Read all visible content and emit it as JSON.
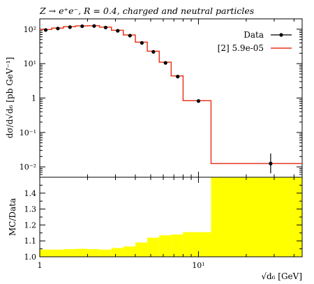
{
  "title": "Z → e⁺e⁻, R = 0.4, charged and neutral particles",
  "colors": {
    "data_marker": "#000000",
    "mc_line": "#e8371f",
    "ratio_band": "#ffff00",
    "axis": "#000000"
  },
  "legend": {
    "entries": [
      {
        "label": "Data",
        "style": "marker-errorbar"
      },
      {
        "label": "[2] 5.9e-05",
        "style": "line"
      }
    ],
    "placement": "top-right"
  },
  "chart_data": [
    {
      "type": "line",
      "panel": "main",
      "ylabel": "dσ/d√d₆ [pb GeV⁻¹]",
      "xscale": "log",
      "yscale": "log",
      "xlim": [
        1,
        45
      ],
      "ylim": [
        0.005,
        200
      ],
      "yticks": [
        {
          "value": 0.01,
          "label": "10⁻²"
        },
        {
          "value": 0.1,
          "label": "10⁻¹"
        },
        {
          "value": 1,
          "label": "1"
        },
        {
          "value": 10,
          "label": "10¹"
        },
        {
          "value": 100,
          "label": "10²"
        }
      ],
      "series": [
        {
          "name": "Data",
          "points": [
            {
              "x": 1.09,
              "y": 95,
              "err": [
                0,
                0
              ]
            },
            {
              "x": 1.3,
              "y": 105,
              "err": [
                0,
                0
              ]
            },
            {
              "x": 1.55,
              "y": 115,
              "err": [
                0,
                0
              ]
            },
            {
              "x": 1.85,
              "y": 122,
              "err": [
                0,
                0
              ]
            },
            {
              "x": 2.2,
              "y": 124,
              "err": [
                0,
                0
              ]
            },
            {
              "x": 2.6,
              "y": 112,
              "err": [
                0,
                0
              ]
            },
            {
              "x": 3.1,
              "y": 90,
              "err": [
                0,
                0
              ]
            },
            {
              "x": 3.7,
              "y": 65,
              "err": [
                0,
                0
              ]
            },
            {
              "x": 4.4,
              "y": 40,
              "err": [
                0,
                0
              ]
            },
            {
              "x": 5.2,
              "y": 22,
              "err": [
                0,
                0
              ]
            },
            {
              "x": 6.2,
              "y": 10.5,
              "err": [
                0,
                0
              ]
            },
            {
              "x": 7.4,
              "y": 4.2,
              "err": [
                0,
                0
              ]
            },
            {
              "x": 10.0,
              "y": 0.82,
              "err": [
                0,
                0
              ]
            },
            {
              "x": 28.5,
              "y": 0.0125,
              "err": [
                0.006,
                0.012
              ]
            }
          ]
        },
        {
          "name": "[2] 5.9e-05",
          "bins": [
            {
              "lo": 1.0,
              "hi": 1.19,
              "y": 98
            },
            {
              "lo": 1.19,
              "hi": 1.41,
              "y": 108
            },
            {
              "lo": 1.41,
              "hi": 1.68,
              "y": 118
            },
            {
              "lo": 1.68,
              "hi": 2.0,
              "y": 125
            },
            {
              "lo": 2.0,
              "hi": 2.38,
              "y": 126
            },
            {
              "lo": 2.38,
              "hi": 2.83,
              "y": 115
            },
            {
              "lo": 2.83,
              "hi": 3.36,
              "y": 93
            },
            {
              "lo": 3.36,
              "hi": 4.0,
              "y": 68
            },
            {
              "lo": 4.0,
              "hi": 4.76,
              "y": 42
            },
            {
              "lo": 4.76,
              "hi": 5.66,
              "y": 23
            },
            {
              "lo": 5.66,
              "hi": 6.73,
              "y": 11
            },
            {
              "lo": 6.73,
              "hi": 8.0,
              "y": 4.4
            },
            {
              "lo": 8.0,
              "hi": 12.0,
              "y": 0.84
            },
            {
              "lo": 12.0,
              "hi": 45.0,
              "y": 0.0125
            }
          ]
        }
      ]
    },
    {
      "type": "area",
      "panel": "ratio",
      "xlabel": "√d₆ [GeV]",
      "ylabel": "MC/Data",
      "xscale": "log",
      "xlim": [
        1,
        45
      ],
      "ylim": [
        1.0,
        1.5
      ],
      "xticks": [
        {
          "value": 1,
          "label": "1"
        },
        {
          "value": 10,
          "label": "10¹"
        }
      ],
      "yticks": [
        {
          "value": 1.0,
          "label": "1.0"
        },
        {
          "value": 1.1,
          "label": "1.1"
        },
        {
          "value": 1.2,
          "label": "1.2"
        },
        {
          "value": 1.3,
          "label": "1.3"
        },
        {
          "value": 1.4,
          "label": "1.4"
        }
      ],
      "band_bins": [
        {
          "lo": 1.0,
          "hi": 1.19,
          "upper": 1.045
        },
        {
          "lo": 1.19,
          "hi": 1.41,
          "upper": 1.045
        },
        {
          "lo": 1.41,
          "hi": 1.68,
          "upper": 1.048
        },
        {
          "lo": 1.68,
          "hi": 2.0,
          "upper": 1.05
        },
        {
          "lo": 2.0,
          "hi": 2.38,
          "upper": 1.048
        },
        {
          "lo": 2.38,
          "hi": 2.83,
          "upper": 1.045
        },
        {
          "lo": 2.83,
          "hi": 3.36,
          "upper": 1.055
        },
        {
          "lo": 3.36,
          "hi": 4.0,
          "upper": 1.065
        },
        {
          "lo": 4.0,
          "hi": 4.76,
          "upper": 1.09
        },
        {
          "lo": 4.76,
          "hi": 5.66,
          "upper": 1.12
        },
        {
          "lo": 5.66,
          "hi": 6.73,
          "upper": 1.135
        },
        {
          "lo": 6.73,
          "hi": 8.0,
          "upper": 1.14
        },
        {
          "lo": 8.0,
          "hi": 12.0,
          "upper": 1.155
        },
        {
          "lo": 12.0,
          "hi": 45.0,
          "upper": 1.5
        }
      ]
    }
  ]
}
